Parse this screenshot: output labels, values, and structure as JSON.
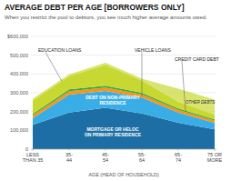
{
  "chart_data": {
    "type": "area",
    "stacked": true,
    "title": "AVERAGE DEBT PER AGE [BORROWERS ONLY]",
    "subtitle": "When you restrict the pool to debtors, you see much higher average amounts owed.",
    "xlabel": "AGE (HEAD OF HOUSEHOLD)",
    "categories": [
      "LESS\nTHAN 35",
      "35-\n44",
      "45-\n54",
      "55-\n64",
      "65-\n74",
      "75 OR\nMORE"
    ],
    "series": [
      {
        "color": "#1c6ea4",
        "values": [
          130000,
          195000,
          220000,
          190000,
          140000,
          105000
        ]
      },
      {
        "color": "#39aee6",
        "values": [
          35000,
          95000,
          90000,
          85000,
          55000,
          35000
        ]
      },
      {
        "color": "#f7941d",
        "values": [
          15000,
          18000,
          18000,
          16000,
          14000,
          12000
        ]
      },
      {
        "color": "#3aaa35",
        "values": [
          8000,
          10000,
          10000,
          9000,
          8000,
          7000
        ]
      },
      {
        "color": "#c8d832",
        "values": [
          70000,
          70000,
          110000,
          65000,
          35000,
          25000
        ]
      },
      {
        "color": "#c8d832",
        "values": [
          10000,
          10000,
          12000,
          10000,
          70000,
          80000
        ]
      }
    ],
    "ylim": [
      0,
      600000
    ],
    "yticks": [
      0,
      {
        "value": 100000,
        "label": "100,000"
      },
      {
        "value": 200000,
        "label": "200,000"
      },
      {
        "value": 300000,
        "label": "300,000"
      },
      {
        "value": 400000,
        "label": "400,000"
      },
      {
        "value": 500000,
        "label": "500,000"
      },
      {
        "value": 600000,
        "label": "$600,000"
      }
    ],
    "grid": true,
    "annotations": [
      "EDUCATION LOANS",
      "VEHICLE LOANS",
      "CREDIT CARD DEBT",
      "OTHER DEBTS",
      "DEBT ON NON-PRIMARY\nRESIDENCE",
      "MORTGAGE OR HELOC\nON PRIMARY RESIDENCE"
    ]
  }
}
